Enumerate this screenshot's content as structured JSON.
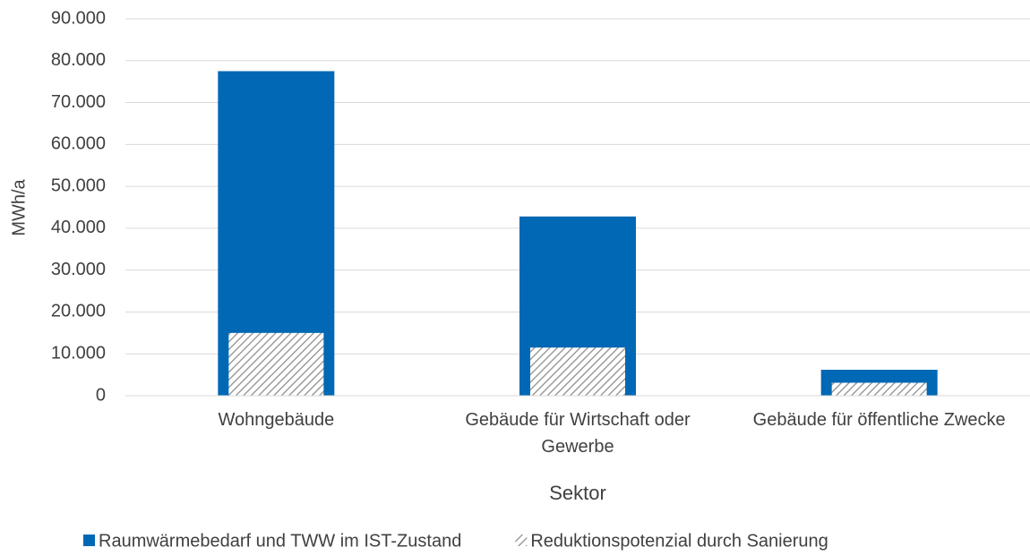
{
  "chart_data": {
    "type": "bar",
    "overlap": true,
    "y_label": "MWh/a",
    "x_label": "Sektor",
    "categories": [
      "Wohngebäude",
      "Gebäude für Wirtschaft oder Gewerbe",
      "Gebäude für öffentliche Zwecke"
    ],
    "series": [
      {
        "name": "Raumwärmebedarf und TWW im IST-Zustand",
        "color": "#0068b4",
        "values": [
          77500,
          42800,
          6200
        ]
      },
      {
        "name": "Reduktionspotenzial durch Sanierung",
        "color": "#7f7f7f",
        "pattern": "hatch",
        "values": [
          15000,
          11500,
          3100
        ]
      }
    ],
    "ylim": [
      0,
      90000
    ],
    "yticks": [
      0,
      {
        "value": 10000,
        "label": "10.000"
      },
      {
        "value": 20000,
        "label": "20.000"
      },
      {
        "value": 30000,
        "label": "30.000"
      },
      {
        "value": 40000,
        "label": "40.000"
      },
      {
        "value": 50000,
        "label": "50.000"
      },
      {
        "value": 60000,
        "label": "60.000"
      },
      {
        "value": 70000,
        "label": "70.000"
      },
      {
        "value": 80000,
        "label": "80.000"
      },
      {
        "value": 90000,
        "label": "90.000"
      }
    ],
    "grid": true,
    "legend": "bottom"
  }
}
